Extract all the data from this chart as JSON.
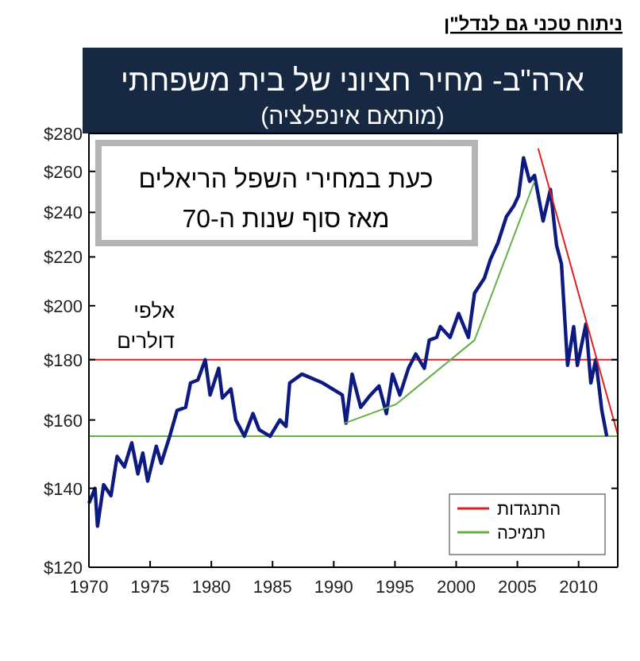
{
  "chart_data": {
    "type": "line",
    "title": "ארה\"ב- מחיר חציוני של בית משפחתי",
    "subtitle": "(מותאם אינפלציה)",
    "ylabel": "אלפי דולרים",
    "annotations": [
      "ניתוח טכני גם לנדל\"ן",
      "כעת במחירי השפל הריאלים",
      "מאז סוף שנות ה-70"
    ],
    "log": "y",
    "xlim": [
      1970,
      2013.2
    ],
    "xticks": [
      1970,
      1975,
      1980,
      1985,
      1990,
      1995,
      2000,
      2005,
      2010
    ],
    "ylim": [
      120,
      280
    ],
    "yticks": [
      {
        "value": 120,
        "label": "$120"
      },
      {
        "value": 140,
        "label": "$140"
      },
      {
        "value": 160,
        "label": "$160"
      },
      {
        "value": 180,
        "label": "$180"
      },
      {
        "value": 200,
        "label": "$200"
      },
      {
        "value": 220,
        "label": "$220"
      },
      {
        "value": 240,
        "label": "$240"
      },
      {
        "value": 260,
        "label": "$260"
      },
      {
        "value": 280,
        "label": "$280"
      }
    ],
    "marker": "none",
    "legend": "bottom right",
    "series": [
      {
        "color": "#0d1a80",
        "x": [
          1970.0,
          1970.5,
          1970.7,
          1971.2,
          1971.8,
          1972.3,
          1972.9,
          1973.5,
          1974.0,
          1974.4,
          1974.8,
          1975.5,
          1975.9,
          1976.6,
          1977.2,
          1977.9,
          1978.3,
          1978.9,
          1979.5,
          1979.9,
          1980.6,
          1980.9,
          1981.6,
          1982.0,
          1982.7,
          1983.4,
          1983.9,
          1984.8,
          1985.6,
          1986.1,
          1986.4,
          1987.4,
          1989.1,
          1990.7,
          1991.0,
          1991.5,
          1992.2,
          1993.0,
          1993.7,
          1994.3,
          1994.8,
          1995.4,
          1996.1,
          1996.7,
          1997.4,
          1997.8,
          1998.4,
          1998.7,
          1999.5,
          2000.2,
          2001.0,
          2001.5,
          2002.3,
          2002.8,
          2003.4,
          2004.1,
          2004.7,
          2005.1,
          2005.5,
          2006.0,
          2006.4,
          2007.1,
          2007.7,
          2008.2,
          2008.6,
          2009.1,
          2009.6,
          2009.9,
          2010.6,
          2011.0,
          2011.4,
          2011.9,
          2012.3
        ],
        "values": [
          136,
          140,
          130,
          141,
          138,
          149,
          146,
          153,
          144,
          150,
          142,
          152,
          147,
          155,
          163,
          164,
          172,
          173,
          180,
          168,
          177,
          167,
          170,
          160,
          155,
          162,
          157,
          155,
          160,
          158,
          172,
          175,
          172,
          168,
          159,
          175,
          164,
          168,
          171,
          162,
          175,
          168,
          177,
          182,
          177,
          187,
          188,
          192,
          188,
          197,
          188,
          205,
          211,
          219,
          226,
          238,
          243,
          248,
          267,
          255,
          258,
          236,
          251,
          225,
          217,
          178,
          192,
          178,
          193,
          172,
          180,
          163,
          155
        ]
      },
      {
        "name": "התנגדות",
        "color": "#e02020",
        "x": [
          2006.7,
          2013.2
        ],
        "values": [
          272,
          155.5
        ]
      },
      {
        "name": "תמיכה",
        "color": "#66b04a",
        "x": [
          1990.9,
          1995.1,
          2001.5,
          2006.4
        ],
        "values": [
          159,
          165,
          187,
          255
        ]
      }
    ],
    "ref_lines": [
      {
        "axis": "y",
        "value": 180,
        "color": "#e02020"
      },
      {
        "axis": "y",
        "value": 155,
        "color": "#66b04a"
      }
    ]
  }
}
